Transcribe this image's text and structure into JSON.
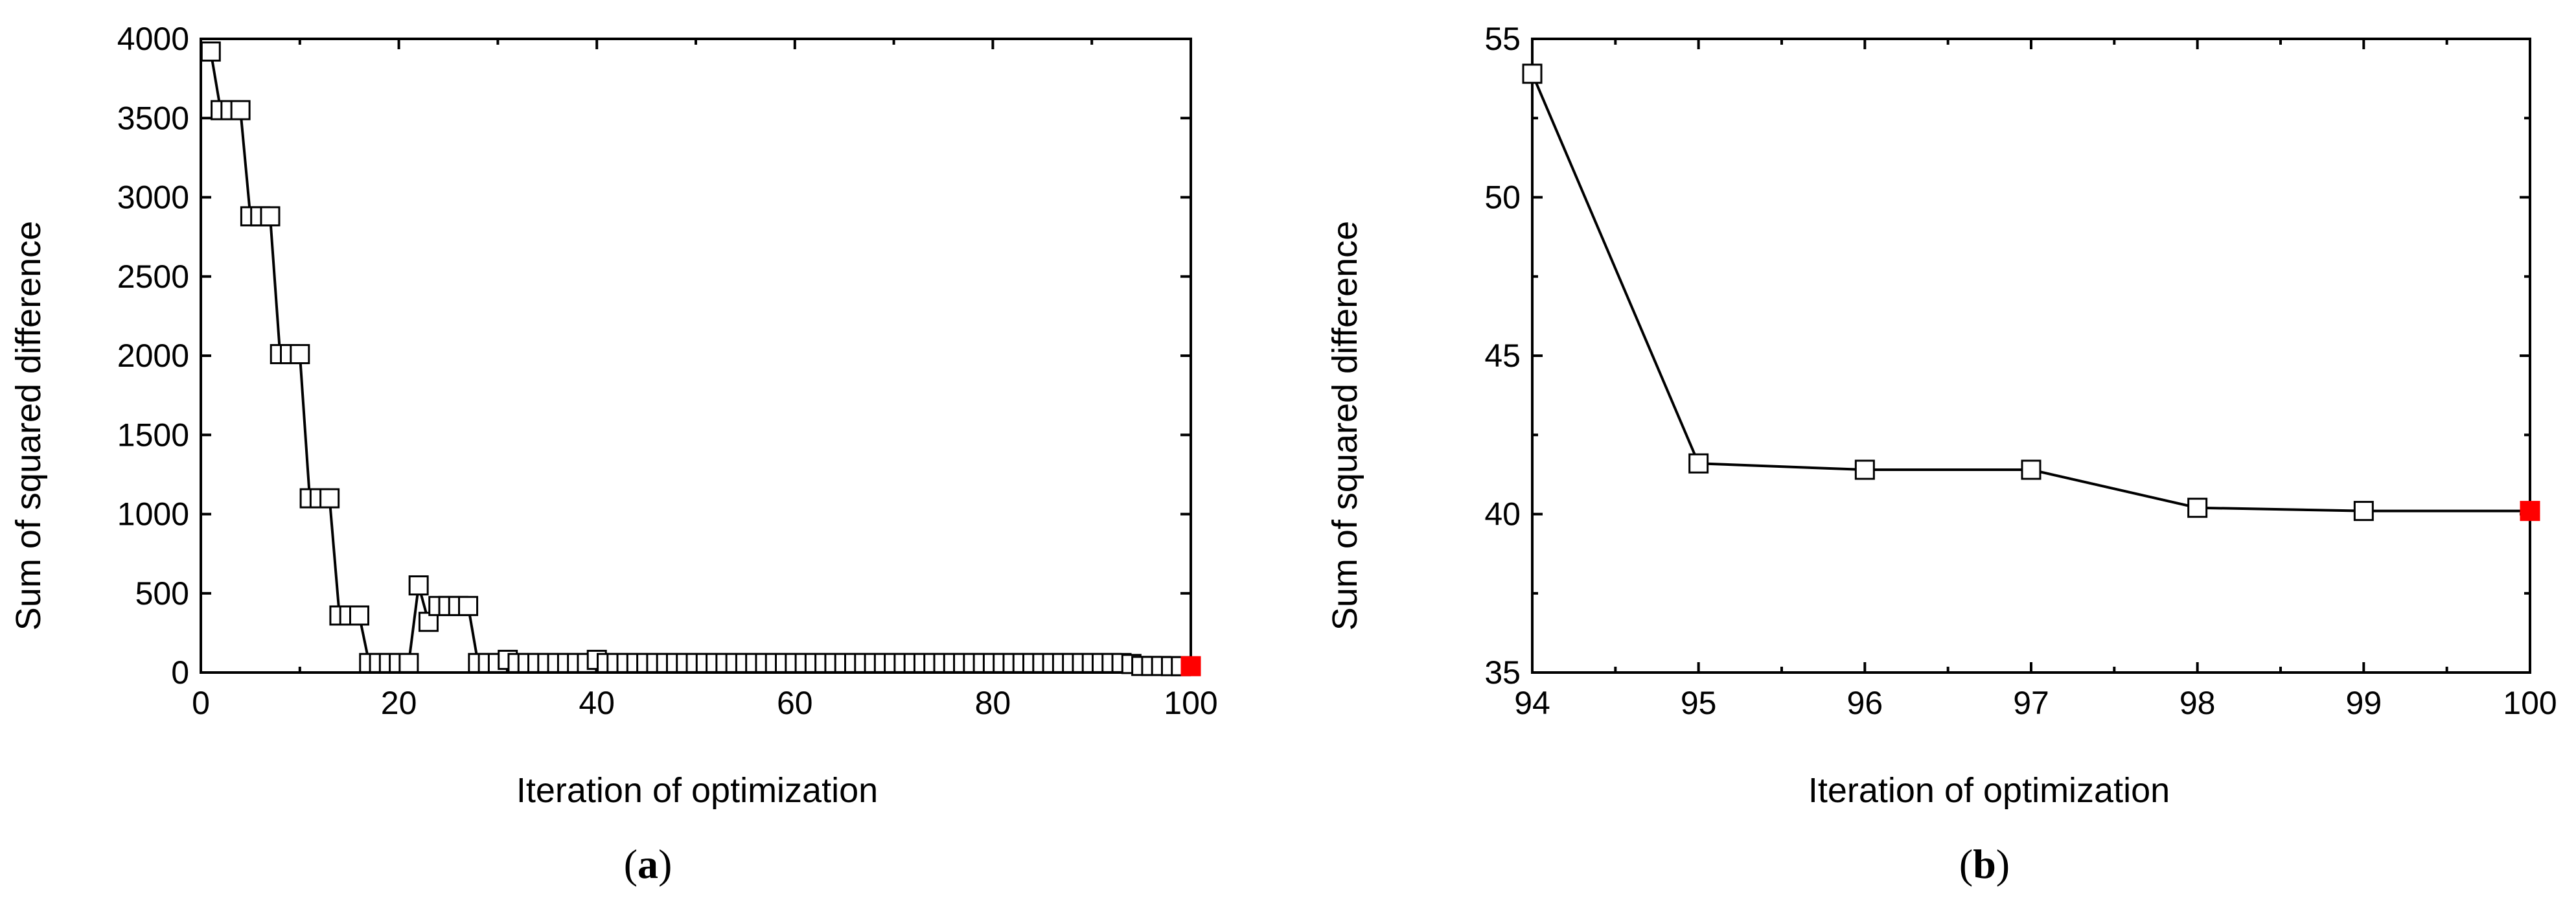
{
  "figure": {
    "panels": [
      {
        "caption_letter": "a"
      },
      {
        "caption_letter": "b"
      }
    ]
  },
  "chart_data": [
    {
      "type": "line",
      "panel": "a",
      "title": "",
      "xlabel": "Iteration of optimization",
      "ylabel": "Sum of squared difference",
      "xlim": [
        0,
        100
      ],
      "ylim": [
        0,
        4000
      ],
      "xticks": [
        0,
        20,
        40,
        60,
        80,
        100
      ],
      "yticks": [
        0,
        500,
        1000,
        1500,
        2000,
        2500,
        3000,
        3500,
        4000
      ],
      "grid": false,
      "marker": "open-square",
      "line_color": "#000000",
      "highlight_color": "#ff0000",
      "highlight_x": 100,
      "series": [
        {
          "x": [
            1,
            2,
            3,
            4,
            5,
            6,
            7,
            8,
            9,
            10,
            11,
            12,
            13,
            14,
            15,
            16,
            17,
            18,
            19,
            20,
            21,
            22,
            23,
            24,
            25,
            26,
            27,
            28,
            29,
            30,
            31,
            32,
            33,
            34,
            35,
            36,
            37,
            38,
            39,
            40,
            41,
            42,
            43,
            44,
            45,
            46,
            47,
            48,
            49,
            50,
            51,
            52,
            53,
            54,
            55,
            56,
            57,
            58,
            59,
            60,
            61,
            62,
            63,
            64,
            65,
            66,
            67,
            68,
            69,
            70,
            71,
            72,
            73,
            74,
            75,
            76,
            77,
            78,
            79,
            80,
            81,
            82,
            83,
            84,
            85,
            86,
            87,
            88,
            89,
            90,
            91,
            92,
            93,
            94,
            95,
            96,
            97,
            98,
            99,
            100
          ],
          "values": [
            3920,
            3550,
            3550,
            3550,
            2880,
            2880,
            2880,
            2010,
            2010,
            2010,
            1100,
            1100,
            1100,
            360,
            360,
            360,
            60,
            60,
            60,
            60,
            60,
            550,
            320,
            420,
            420,
            420,
            420,
            60,
            60,
            60,
            80,
            60,
            60,
            60,
            60,
            60,
            60,
            60,
            60,
            80,
            60,
            60,
            60,
            60,
            60,
            60,
            60,
            60,
            60,
            60,
            60,
            60,
            60,
            60,
            60,
            60,
            60,
            60,
            60,
            60,
            60,
            60,
            60,
            60,
            60,
            60,
            60,
            60,
            60,
            60,
            60,
            60,
            60,
            60,
            60,
            60,
            60,
            60,
            60,
            60,
            60,
            60,
            60,
            60,
            60,
            60,
            60,
            60,
            60,
            60,
            60,
            60,
            60,
            53.9,
            41.6,
            41.4,
            41.4,
            40.2,
            40.1,
            40.1
          ]
        }
      ]
    },
    {
      "type": "line",
      "panel": "b",
      "title": "",
      "xlabel": "Iteration of optimization",
      "ylabel": "Sum of squared difference",
      "xlim": [
        94,
        100
      ],
      "ylim": [
        35,
        55
      ],
      "xticks": [
        94,
        95,
        96,
        97,
        98,
        99,
        100
      ],
      "yticks": [
        35,
        40,
        45,
        50,
        55
      ],
      "grid": false,
      "marker": "open-square",
      "line_color": "#000000",
      "highlight_color": "#ff0000",
      "highlight_x": 100,
      "series": [
        {
          "x": [
            94,
            95,
            96,
            97,
            98,
            99,
            100
          ],
          "values": [
            53.9,
            41.6,
            41.4,
            41.4,
            40.2,
            40.1,
            40.1
          ]
        }
      ]
    }
  ]
}
